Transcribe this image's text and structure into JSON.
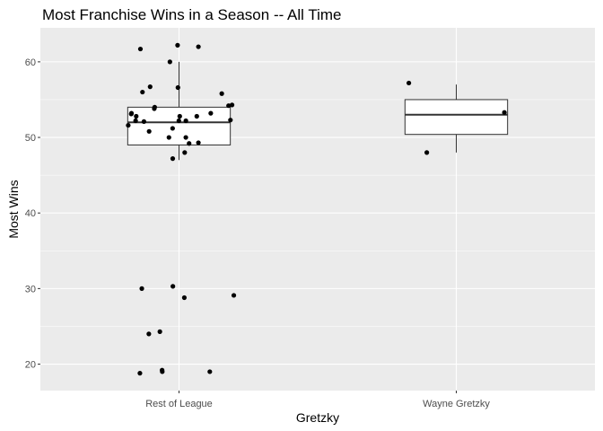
{
  "chart_data": {
    "type": "boxplot",
    "title": "Most Franchise Wins in a Season -- All Time",
    "xlabel": "Gretzky",
    "ylabel": "Most Wins",
    "categories": [
      "Rest of League",
      "Wayne Gretzky"
    ],
    "yticks": [
      20,
      30,
      40,
      50,
      60
    ],
    "ylim": [
      16.5,
      64.5
    ],
    "grid": true,
    "colors": {
      "panel": "#ebebeb",
      "grid": "#ffffff",
      "box_fill": "#ffffff",
      "box_line": "#333333",
      "point": "#000000"
    },
    "boxes": [
      {
        "category": "Rest of League",
        "q1": 49,
        "median": 52,
        "q3": 54,
        "whisker_low": 47,
        "whisker_high": 60
      },
      {
        "category": "Wayne Gretzky",
        "q1": 50.4,
        "median": 53,
        "q3": 55,
        "whisker_low": 48,
        "whisker_high": 57
      }
    ],
    "points": [
      {
        "category": "Rest of League",
        "values": [
          56.6,
          52.2,
          52.2,
          56.7,
          51.2,
          52.8,
          53.2,
          55.8,
          49.2,
          50.0,
          54.0,
          53.2,
          52.8,
          53.1,
          52.2,
          50.8,
          62.0,
          61.7,
          50.0,
          62.2,
          56.0,
          51.6,
          54.2,
          54.3,
          52.8,
          47.2,
          52.3,
          52.1,
          60.0,
          48.0,
          49.3,
          53.8,
          30.0,
          29.1,
          30.3,
          24.0,
          28.8,
          24.3,
          18.8,
          19.0,
          19.0,
          19.2
        ]
      },
      {
        "category": "Wayne Gretzky",
        "values": [
          57.2,
          53.3,
          48.0
        ]
      }
    ]
  }
}
